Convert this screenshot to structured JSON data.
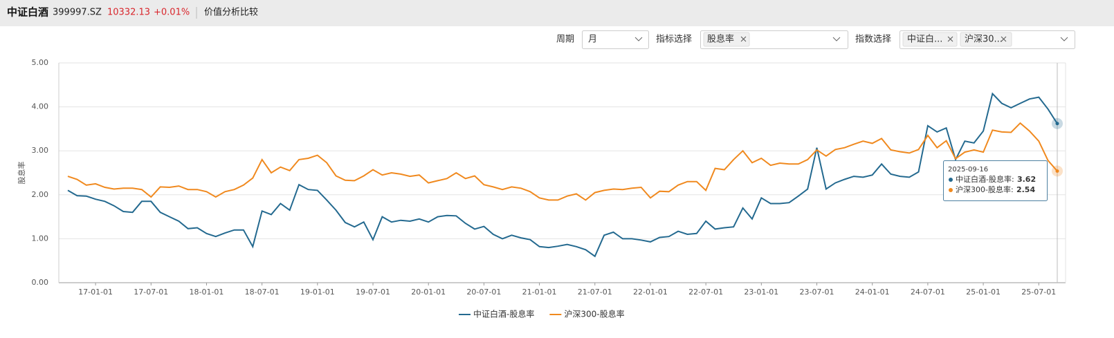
{
  "header": {
    "name": "中证白酒",
    "code": "399997.SZ",
    "price": "10332.13",
    "change": "+0.01%",
    "tab": "价值分析比较"
  },
  "controls": {
    "period_label": "周期",
    "period": "月",
    "indicator_label": "指标选择",
    "indicator_tag": "股息率",
    "index_label": "指数选择",
    "index_tags": [
      "中证白...",
      "沪深30..."
    ]
  },
  "chart_data": {
    "type": "line",
    "y_label": "股息率",
    "ylim": [
      0,
      5
    ],
    "yticks": [
      {
        "value": 0,
        "label": "0.00"
      },
      {
        "value": 1,
        "label": "1.00"
      },
      {
        "value": 2,
        "label": "2.00"
      },
      {
        "value": 3,
        "label": "3.00"
      },
      {
        "value": 4,
        "label": "4.00"
      },
      {
        "value": 5,
        "label": "5.00"
      }
    ],
    "grid": true,
    "legend": "bottom",
    "tooltip_date": "2025-09-16",
    "categories": [
      null,
      null,
      null,
      "17-01-01",
      null,
      null,
      null,
      null,
      null,
      "17-07-01",
      null,
      null,
      null,
      null,
      null,
      "18-01-01",
      null,
      null,
      null,
      null,
      null,
      "18-07-01",
      null,
      null,
      null,
      null,
      null,
      "19-01-01",
      null,
      null,
      null,
      null,
      null,
      "19-07-01",
      null,
      null,
      null,
      null,
      null,
      "20-01-01",
      null,
      null,
      null,
      null,
      null,
      "20-07-01",
      null,
      null,
      null,
      null,
      null,
      "21-01-01",
      null,
      null,
      null,
      null,
      null,
      "21-07-01",
      null,
      null,
      null,
      null,
      null,
      "22-01-01",
      null,
      null,
      null,
      null,
      null,
      "22-07-01",
      null,
      null,
      null,
      null,
      null,
      "23-01-01",
      null,
      null,
      null,
      null,
      null,
      "23-07-01",
      null,
      null,
      null,
      null,
      null,
      "24-01-01",
      null,
      null,
      null,
      null,
      null,
      "24-07-01",
      null,
      null,
      null,
      null,
      null,
      "25-01-01",
      null,
      null,
      null,
      null,
      null,
      "25-07-01",
      null,
      null
    ],
    "series": [
      {
        "name": "中证白酒-股息率",
        "color": "#23698f",
        "values": [
          2.1,
          1.98,
          1.97,
          1.9,
          1.85,
          1.75,
          1.62,
          1.6,
          1.85,
          1.85,
          1.6,
          1.5,
          1.4,
          1.23,
          1.25,
          1.12,
          1.05,
          1.13,
          1.2,
          1.2,
          0.82,
          1.63,
          1.55,
          1.8,
          1.65,
          2.23,
          2.12,
          2.1,
          1.88,
          1.65,
          1.37,
          1.27,
          1.38,
          0.98,
          1.5,
          1.38,
          1.42,
          1.4,
          1.45,
          1.38,
          1.5,
          1.53,
          1.52,
          1.35,
          1.22,
          1.28,
          1.1,
          1.0,
          1.08,
          1.02,
          0.98,
          0.82,
          0.8,
          0.83,
          0.87,
          0.82,
          0.75,
          0.6,
          1.08,
          1.15,
          1.0,
          1.0,
          0.97,
          0.93,
          1.03,
          1.05,
          1.17,
          1.1,
          1.12,
          1.4,
          1.22,
          1.25,
          1.27,
          1.7,
          1.45,
          1.93,
          1.8,
          1.8,
          1.82,
          1.97,
          2.13,
          3.07,
          2.13,
          2.27,
          2.35,
          2.42,
          2.4,
          2.45,
          2.7,
          2.47,
          2.42,
          2.4,
          2.52,
          3.57,
          3.43,
          3.52,
          2.8,
          3.22,
          3.18,
          3.45,
          4.3,
          4.08,
          3.98,
          4.08,
          4.18,
          4.22,
          3.95,
          3.62
        ]
      },
      {
        "name": "沪深300-股息率",
        "color": "#f0891e",
        "values": [
          2.42,
          2.35,
          2.22,
          2.25,
          2.17,
          2.13,
          2.15,
          2.15,
          2.12,
          1.95,
          2.18,
          2.17,
          2.2,
          2.12,
          2.12,
          2.07,
          1.95,
          2.07,
          2.12,
          2.22,
          2.38,
          2.8,
          2.5,
          2.63,
          2.55,
          2.8,
          2.83,
          2.9,
          2.73,
          2.43,
          2.33,
          2.32,
          2.43,
          2.57,
          2.45,
          2.5,
          2.47,
          2.42,
          2.45,
          2.27,
          2.32,
          2.37,
          2.5,
          2.37,
          2.43,
          2.23,
          2.18,
          2.12,
          2.18,
          2.15,
          2.07,
          1.93,
          1.88,
          1.88,
          1.97,
          2.02,
          1.88,
          2.05,
          2.1,
          2.13,
          2.12,
          2.15,
          2.17,
          1.93,
          2.08,
          2.07,
          2.22,
          2.3,
          2.3,
          2.1,
          2.6,
          2.57,
          2.8,
          3.0,
          2.73,
          2.83,
          2.67,
          2.72,
          2.7,
          2.7,
          2.8,
          3.02,
          2.88,
          3.03,
          3.07,
          3.15,
          3.22,
          3.17,
          3.28,
          3.02,
          2.98,
          2.95,
          3.03,
          3.35,
          3.07,
          3.23,
          2.82,
          2.97,
          3.02,
          2.97,
          3.47,
          3.43,
          3.42,
          3.63,
          3.45,
          3.22,
          2.78,
          2.54
        ]
      }
    ]
  }
}
